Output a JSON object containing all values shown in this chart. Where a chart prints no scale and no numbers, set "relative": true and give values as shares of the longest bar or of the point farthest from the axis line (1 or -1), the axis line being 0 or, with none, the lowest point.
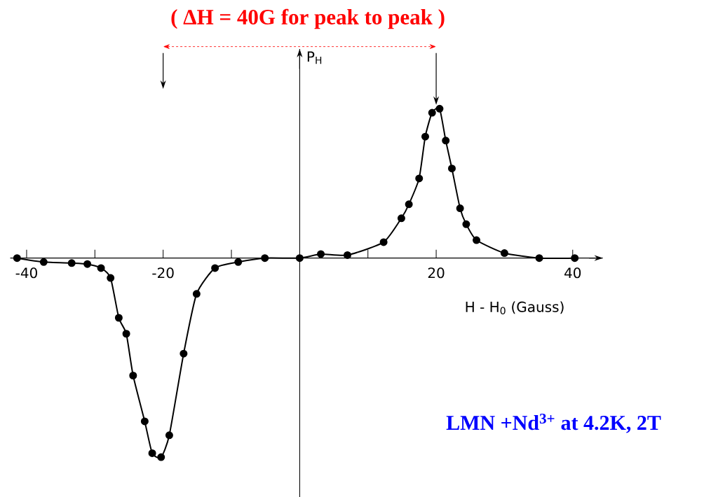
{
  "chart_data": {
    "type": "line",
    "title": "( ΔH = 40G for peak to peak )",
    "xlabel": "H - H$_{0}$ (Gauss)",
    "ylabel": "P$_{H}$",
    "annotations": [
      "LMN +Nd$^{3+}$ at 4.2K, 2T"
    ],
    "relative": true,
    "marker": "circle",
    "line_style": "solid",
    "color": "#000000",
    "xlim": [
      -42.4,
      44.4
    ],
    "xticks": [
      -40,
      {
        "value": -30,
        "label": null
      },
      -20,
      {
        "value": -10,
        "label": null
      },
      {
        "value": 10,
        "label": null
      },
      20,
      40
    ],
    "x": [
      -41.4,
      -37.5,
      -33.4,
      -31.1,
      -29.1,
      -27.7,
      -26.5,
      -25.4,
      -24.4,
      -22.7,
      -21.6,
      -20.3,
      -19.1,
      -17.0,
      -15.1,
      -12.4,
      -9.0,
      -5.1,
      0,
      3.1,
      7.0,
      12.3,
      14.9,
      16.0,
      17.5,
      18.4,
      19.4,
      20.5,
      21.4,
      22.3,
      23.5,
      24.4,
      25.9,
      30.0,
      35.1,
      40.3
    ],
    "values": [
      0,
      -0.02,
      -0.025,
      -0.03,
      -0.05,
      -0.1,
      -0.3,
      -0.38,
      -0.59,
      -0.82,
      -0.98,
      -1,
      -0.89,
      -0.48,
      -0.18,
      -0.05,
      -0.02,
      0,
      0,
      0.02,
      0.015,
      0.08,
      0.2,
      0.27,
      0.4,
      0.61,
      0.73,
      0.75,
      0.59,
      0.45,
      0.25,
      0.17,
      0.09,
      0.025,
      0,
      0
    ]
  }
}
